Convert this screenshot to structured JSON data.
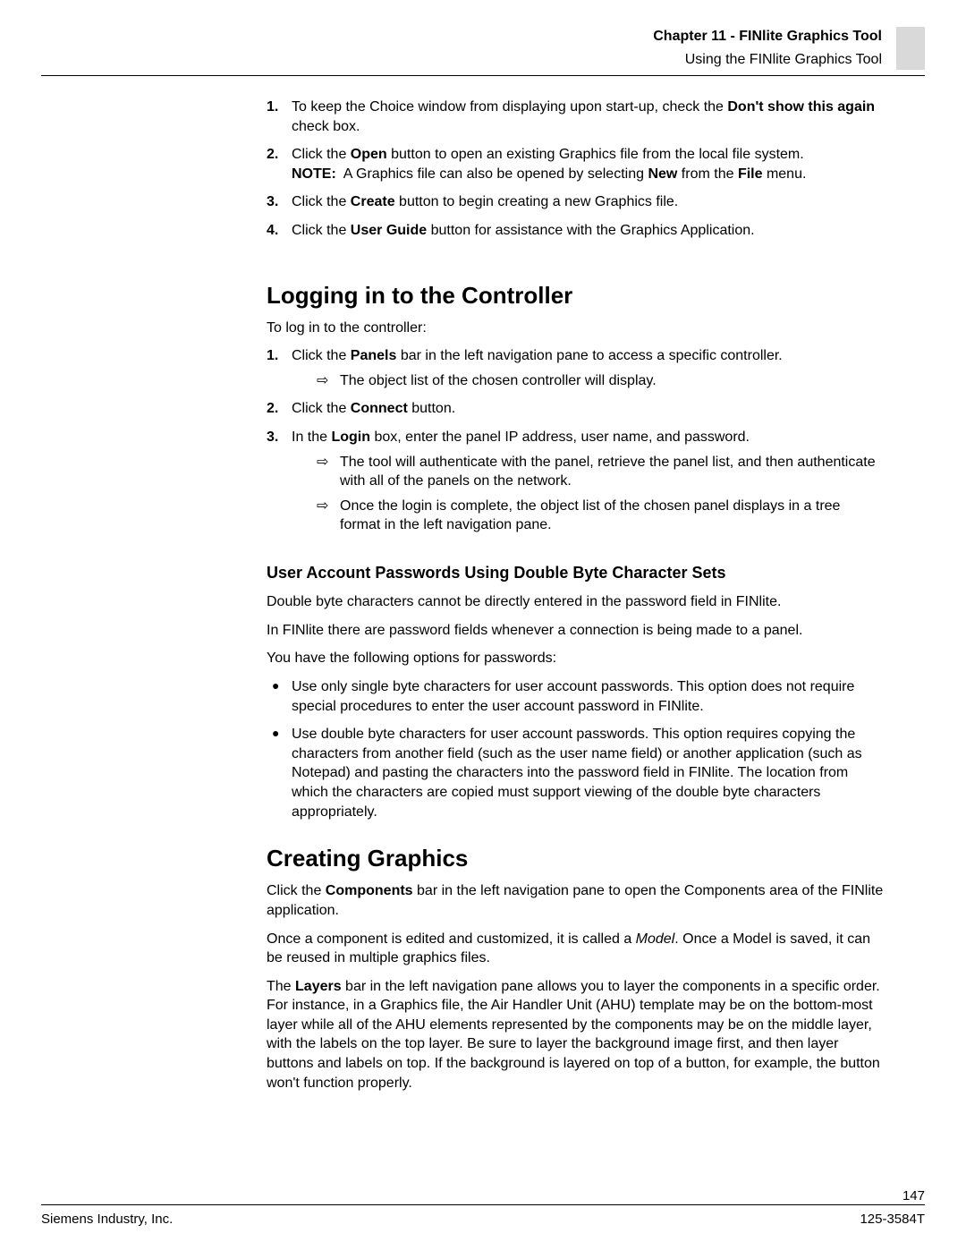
{
  "header": {
    "chapter": "Chapter 11 - FINlite Graphics Tool",
    "sub": "Using the FINlite Graphics Tool"
  },
  "intro_steps": [
    {
      "num": "1.",
      "html": "To keep the Choice window from displaying upon start-up, check the <span class=\"b\">Don't show this again</span> check box."
    },
    {
      "num": "2.",
      "html": "Click the <span class=\"b\">Open</span> button to open an existing Graphics file from the local file system.<br><span class=\"b\">NOTE:</span>&nbsp; A Graphics file can also be opened by selecting <span class=\"b\">New</span> from the <span class=\"b\">File</span> menu."
    },
    {
      "num": "3.",
      "html": "Click the <span class=\"b\">Create</span> button to begin creating a new Graphics file."
    },
    {
      "num": "4.",
      "html": "Click the <span class=\"b\">User Guide</span> button for assistance with the Graphics Application."
    }
  ],
  "login": {
    "heading": "Logging in to the Controller",
    "intro": "To log in to the controller:",
    "steps": [
      {
        "num": "1.",
        "html": "Click the <span class=\"b\">Panels</span> bar in the left navigation pane to access a specific controller.",
        "subs": [
          "The object list of the chosen controller will display."
        ]
      },
      {
        "num": "2.",
        "html": "Click the <span class=\"b\">Connect</span> button."
      },
      {
        "num": "3.",
        "html": "In the <span class=\"b\">Login</span> box, enter the panel IP address, user name, and password.",
        "subs": [
          "The tool will authenticate with the panel, retrieve the panel list, and then authenticate with all of the panels on the network.",
          "Once the login is complete, the object list of the chosen panel displays in a tree format in the left navigation pane."
        ]
      }
    ]
  },
  "dbcs": {
    "heading": "User Account Passwords Using Double Byte Character Sets",
    "paras": [
      "Double byte characters cannot be directly entered in the password field in FINlite.",
      "In FINlite there are password fields whenever a connection is being made to a panel.",
      "You have the following options for passwords:"
    ],
    "bullets": [
      "Use only single byte characters for user account passwords. This option does not require special procedures to enter the user account password in FINlite.",
      "Use double byte characters for user account passwords. This option requires copying the characters from another field (such as the user name field) or another application (such as Notepad) and pasting the characters into the password field in FINlite. The location from which the characters are copied must support viewing of the double byte characters appropriately."
    ]
  },
  "creating": {
    "heading": "Creating Graphics",
    "paras_html": [
      "Click the <span class=\"b\">Components</span> bar in the left navigation pane to open the Components area of the FINlite application.",
      "Once a component is edited and customized, it is called a <span class=\"it\">Model</span>. Once a Model is saved, it can be reused in multiple graphics files.",
      "The <span class=\"b\">Layers</span> bar in the left navigation pane allows you to layer the components in a specific order. For instance, in a Graphics file, the Air Handler Unit (AHU) template may be on the bottom-most layer while all of the AHU elements represented by the components may be on the middle layer, with the labels on the top layer. Be sure to layer the background image first, and then layer buttons and labels on top. If the background is layered on top of a button, for example, the button won't function properly."
    ]
  },
  "footer": {
    "page": "147",
    "left": "Siemens Industry, Inc.",
    "right": "125-3584T"
  },
  "glyphs": {
    "arrow": "⇨",
    "bullet": "●"
  }
}
